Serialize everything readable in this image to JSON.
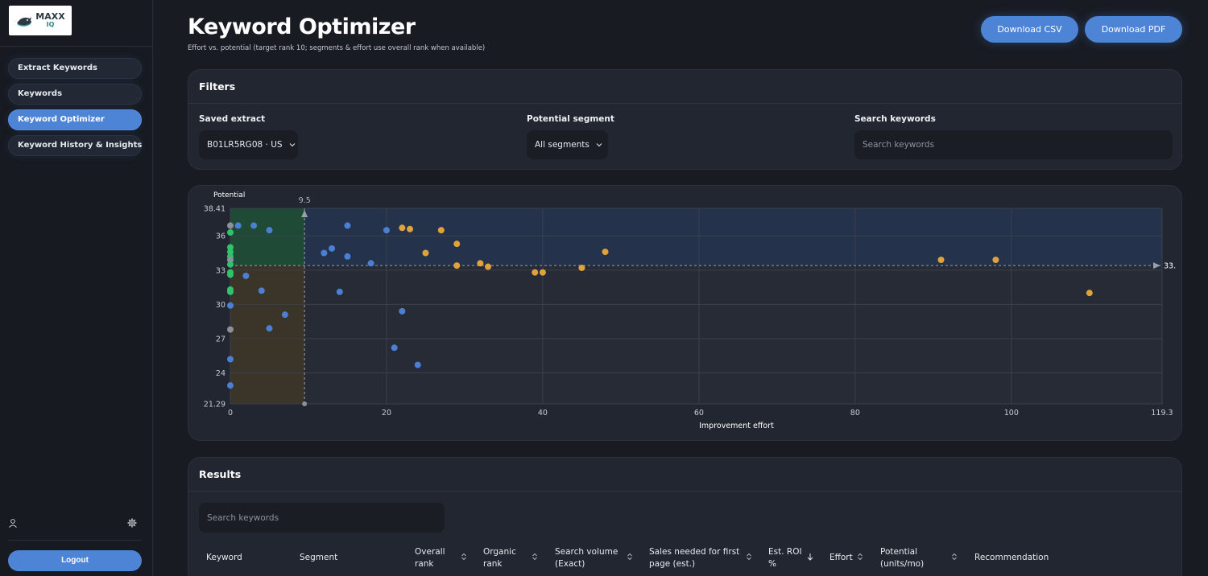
{
  "sidebar": {
    "logo": {
      "line1": "MAXX",
      "line2": "IQ"
    },
    "items": [
      {
        "label": "Extract Keywords",
        "active": false
      },
      {
        "label": "Keywords",
        "active": false
      },
      {
        "label": "Keyword Optimizer",
        "active": true
      },
      {
        "label": "Keyword History & Insights",
        "active": false
      }
    ],
    "logout_label": "Logout"
  },
  "header": {
    "title": "Keyword Optimizer",
    "subtitle": "Effort vs. potential (target rank 10; segments & effort use overall rank when available)",
    "download_csv": "Download CSV",
    "download_pdf": "Download PDF"
  },
  "filters": {
    "title": "Filters",
    "saved_extract_label": "Saved extract",
    "saved_extract_value": "B01LR5RG08 · US",
    "segment_label": "Potential segment",
    "segment_value": "All segments",
    "search_label": "Search keywords",
    "search_placeholder": "Search keywords"
  },
  "chart_data": {
    "type": "scatter",
    "ylabel": "Potential",
    "xlabel": "Improvement effort",
    "xlim": [
      0,
      119.3
    ],
    "ylim": [
      21.29,
      38.41
    ],
    "x_ticks": [
      "0",
      "20",
      "40",
      "60",
      "80",
      "100",
      "119.3"
    ],
    "y_ticks": [
      "21.29",
      "24",
      "27",
      "30",
      "33",
      "36",
      "38.41"
    ],
    "x_threshold": 9.5,
    "x_threshold_label": "9.5",
    "y_threshold": 33.4,
    "y_threshold_label": "33.",
    "grid": true,
    "colors": {
      "green": "#2fc46c",
      "blue": "#4b7fd2",
      "orange": "#e0a23a",
      "gray": "#8d9099"
    },
    "points": [
      {
        "x": 0,
        "y": 36.9,
        "c": "gray"
      },
      {
        "x": 0,
        "y": 36.3,
        "c": "green"
      },
      {
        "x": 0,
        "y": 35.0,
        "c": "green"
      },
      {
        "x": 0,
        "y": 34.6,
        "c": "green"
      },
      {
        "x": 0,
        "y": 34.2,
        "c": "green"
      },
      {
        "x": 0,
        "y": 33.9,
        "c": "gray"
      },
      {
        "x": 0,
        "y": 33.5,
        "c": "green"
      },
      {
        "x": 0,
        "y": 32.8,
        "c": "green"
      },
      {
        "x": 0,
        "y": 32.6,
        "c": "green"
      },
      {
        "x": 0,
        "y": 31.3,
        "c": "green"
      },
      {
        "x": 0,
        "y": 31.1,
        "c": "green"
      },
      {
        "x": 0,
        "y": 29.9,
        "c": "blue"
      },
      {
        "x": 0,
        "y": 27.8,
        "c": "gray"
      },
      {
        "x": 0,
        "y": 25.2,
        "c": "blue"
      },
      {
        "x": 0,
        "y": 22.9,
        "c": "blue"
      },
      {
        "x": 1,
        "y": 36.9,
        "c": "blue"
      },
      {
        "x": 2,
        "y": 32.5,
        "c": "blue"
      },
      {
        "x": 3,
        "y": 36.9,
        "c": "blue"
      },
      {
        "x": 4,
        "y": 31.2,
        "c": "blue"
      },
      {
        "x": 5,
        "y": 36.5,
        "c": "blue"
      },
      {
        "x": 5,
        "y": 27.9,
        "c": "blue"
      },
      {
        "x": 7,
        "y": 29.1,
        "c": "blue"
      },
      {
        "x": 9.5,
        "y": 21.29,
        "c": "gray"
      },
      {
        "x": 12,
        "y": 34.5,
        "c": "blue"
      },
      {
        "x": 13,
        "y": 34.9,
        "c": "blue"
      },
      {
        "x": 14,
        "y": 31.1,
        "c": "blue"
      },
      {
        "x": 15,
        "y": 36.9,
        "c": "blue"
      },
      {
        "x": 15,
        "y": 34.2,
        "c": "blue"
      },
      {
        "x": 18,
        "y": 33.6,
        "c": "blue"
      },
      {
        "x": 20,
        "y": 36.5,
        "c": "blue"
      },
      {
        "x": 21,
        "y": 26.2,
        "c": "blue"
      },
      {
        "x": 22,
        "y": 36.7,
        "c": "orange"
      },
      {
        "x": 22,
        "y": 29.4,
        "c": "blue"
      },
      {
        "x": 23,
        "y": 36.6,
        "c": "orange"
      },
      {
        "x": 24,
        "y": 24.7,
        "c": "blue"
      },
      {
        "x": 25,
        "y": 34.5,
        "c": "orange"
      },
      {
        "x": 27,
        "y": 36.5,
        "c": "orange"
      },
      {
        "x": 29,
        "y": 35.3,
        "c": "orange"
      },
      {
        "x": 29,
        "y": 33.4,
        "c": "orange"
      },
      {
        "x": 32,
        "y": 33.6,
        "c": "orange"
      },
      {
        "x": 33,
        "y": 33.3,
        "c": "orange"
      },
      {
        "x": 39,
        "y": 32.8,
        "c": "orange"
      },
      {
        "x": 40,
        "y": 32.8,
        "c": "orange"
      },
      {
        "x": 45,
        "y": 33.2,
        "c": "orange"
      },
      {
        "x": 48,
        "y": 34.6,
        "c": "orange"
      },
      {
        "x": 91,
        "y": 33.9,
        "c": "orange"
      },
      {
        "x": 98,
        "y": 33.9,
        "c": "orange"
      },
      {
        "x": 110,
        "y": 31.0,
        "c": "orange"
      }
    ]
  },
  "results": {
    "title": "Results",
    "search_placeholder": "Search keywords",
    "columns": [
      {
        "line1": "Keyword",
        "line2": "",
        "sort": false
      },
      {
        "line1": "Segment",
        "line2": "",
        "sort": false
      },
      {
        "line1": "Overall",
        "line2": "rank",
        "sort": true
      },
      {
        "line1": "Organic",
        "line2": "rank",
        "sort": true
      },
      {
        "line1": "Search volume",
        "line2": "(Exact)",
        "sort": true
      },
      {
        "line1": "Sales needed for first",
        "line2": "page (est.)",
        "sort": true
      },
      {
        "line1": "Est. ROI",
        "line2": "%",
        "sort": true,
        "active_desc": true
      },
      {
        "line1": "Effort",
        "line2": "",
        "sort": true
      },
      {
        "line1": "Potential",
        "line2": "(units/mo)",
        "sort": true
      },
      {
        "line1": "Recommendation",
        "line2": "",
        "sort": false
      }
    ]
  }
}
